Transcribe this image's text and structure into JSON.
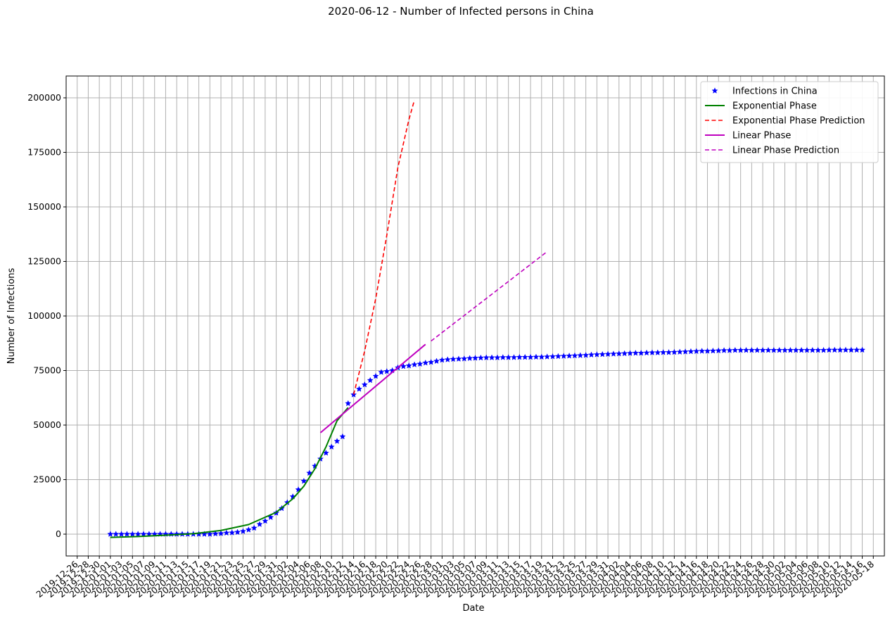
{
  "chart_data": {
    "type": "line",
    "title": "2020-06-12 - Number of Infected persons in China",
    "xlabel": "Date",
    "ylabel": "Number of Infections",
    "ylim": [
      -10000,
      210000
    ],
    "xlim": [
      "2019-12-24",
      "2020-05-20"
    ],
    "yticks": [
      0,
      25000,
      50000,
      75000,
      100000,
      125000,
      150000,
      175000,
      200000
    ],
    "xticks": [
      "2019-12-26",
      "2019-12-28",
      "2019-12-30",
      "2020-01-01",
      "2020-01-03",
      "2020-01-05",
      "2020-01-07",
      "2020-01-09",
      "2020-01-11",
      "2020-01-13",
      "2020-01-15",
      "2020-01-17",
      "2020-01-19",
      "2020-01-21",
      "2020-01-23",
      "2020-01-25",
      "2020-01-27",
      "2020-01-29",
      "2020-01-31",
      "2020-02-02",
      "2020-02-04",
      "2020-02-06",
      "2020-02-08",
      "2020-02-10",
      "2020-02-12",
      "2020-02-14",
      "2020-02-16",
      "2020-02-18",
      "2020-02-20",
      "2020-02-22",
      "2020-02-24",
      "2020-02-26",
      "2020-02-28",
      "2020-03-01",
      "2020-03-03",
      "2020-03-05",
      "2020-03-07",
      "2020-03-09",
      "2020-03-11",
      "2020-03-13",
      "2020-03-15",
      "2020-03-17",
      "2020-03-19",
      "2020-03-21",
      "2020-03-23",
      "2020-03-25",
      "2020-03-27",
      "2020-03-29",
      "2020-03-31",
      "2020-04-02",
      "2020-04-04",
      "2020-04-06",
      "2020-04-08",
      "2020-04-10",
      "2020-04-12",
      "2020-04-14",
      "2020-04-16",
      "2020-04-18",
      "2020-04-20",
      "2020-04-22",
      "2020-04-24",
      "2020-04-26",
      "2020-04-28",
      "2020-04-30",
      "2020-05-02",
      "2020-05-04",
      "2020-05-06",
      "2020-05-08",
      "2020-05-10",
      "2020-05-12",
      "2020-05-14",
      "2020-05-16",
      "2020-05-18"
    ],
    "xtick_labels": [
      "2019-12-26",
      "2019-12-28",
      "2019-12-30",
      "2020-01-01",
      "2020-01-03",
      "2020-01-05",
      "2020-01-07",
      "2020-01-09",
      "2020-01-11",
      "2020-01-13",
      "2020-01-15",
      "2020-01-17",
      "2020-01-19",
      "2020-01-21",
      "2020-01-23",
      "2020-01-25",
      "2020-01-27",
      "2020-01-29",
      "2020-01-31",
      "2020-02-02",
      "2020-02-04",
      "2020-02-06",
      "2020-02-08",
      "2020-02-10",
      "2020-02-12",
      "2020-02-14",
      "2020-02-16",
      "2020-02-18",
      "2020-02-20",
      "2020-02-22",
      "2020-02-24",
      "2020-02-26",
      "2020-02-28",
      "2020-03-01",
      "2020-03-03",
      "2020-03-05",
      "2020-03-07",
      "2020-03-09",
      "2020-03-11",
      "2020-03-13",
      "2020-03-15",
      "2020-03-17",
      "2020-03-19",
      "2020-03-21",
      "2020-03-23",
      "2020-03-25",
      "2020-03-27",
      "2020-03-29",
      "2020-03-31",
      "2020-04-02",
      "2020-04-04",
      "2020-04-06",
      "2020-04-08",
      "2020-04-10",
      "2020-04-12",
      "2020-04-14",
      "2020-04-16",
      "2020-04-18",
      "2020-04-20",
      "2020-04-22",
      "2020-04-24",
      "2020-04-26",
      "2020-04-28",
      "2020-04-30",
      "2020-05-02",
      "2020-05-04",
      "2020-05-06",
      "2020-05-08",
      "2020-05-10",
      "2020-05-12",
      "2020-05-14",
      "2020-05-16",
      "2020-05-18"
    ],
    "grid": true,
    "legend_position": "upper right",
    "series": [
      {
        "name": "Infections in China",
        "style": "star-markers",
        "color": "#0000ff",
        "x": [
          "2020-01-01",
          "2020-01-02",
          "2020-01-03",
          "2020-01-04",
          "2020-01-05",
          "2020-01-06",
          "2020-01-07",
          "2020-01-08",
          "2020-01-09",
          "2020-01-10",
          "2020-01-11",
          "2020-01-12",
          "2020-01-13",
          "2020-01-14",
          "2020-01-15",
          "2020-01-16",
          "2020-01-17",
          "2020-01-18",
          "2020-01-19",
          "2020-01-20",
          "2020-01-21",
          "2020-01-22",
          "2020-01-23",
          "2020-01-24",
          "2020-01-25",
          "2020-01-26",
          "2020-01-27",
          "2020-01-28",
          "2020-01-29",
          "2020-01-30",
          "2020-01-31",
          "2020-02-01",
          "2020-02-02",
          "2020-02-03",
          "2020-02-04",
          "2020-02-05",
          "2020-02-06",
          "2020-02-07",
          "2020-02-08",
          "2020-02-09",
          "2020-02-10",
          "2020-02-11",
          "2020-02-12",
          "2020-02-13",
          "2020-02-14",
          "2020-02-15",
          "2020-02-16",
          "2020-02-17",
          "2020-02-18",
          "2020-02-19",
          "2020-02-20",
          "2020-02-21",
          "2020-02-22",
          "2020-02-23",
          "2020-02-24",
          "2020-02-25",
          "2020-02-26",
          "2020-02-27",
          "2020-02-28",
          "2020-02-29",
          "2020-03-01",
          "2020-03-02",
          "2020-03-03",
          "2020-03-04",
          "2020-03-05",
          "2020-03-06",
          "2020-03-07",
          "2020-03-08",
          "2020-03-09",
          "2020-03-10",
          "2020-03-11",
          "2020-03-12",
          "2020-03-13",
          "2020-03-14",
          "2020-03-15",
          "2020-03-16",
          "2020-03-17",
          "2020-03-18",
          "2020-03-19",
          "2020-03-20",
          "2020-03-21",
          "2020-03-22",
          "2020-03-23",
          "2020-03-24",
          "2020-03-25",
          "2020-03-26",
          "2020-03-27",
          "2020-03-28",
          "2020-03-29",
          "2020-03-30",
          "2020-03-31",
          "2020-04-01",
          "2020-04-02",
          "2020-04-03",
          "2020-04-04",
          "2020-04-05",
          "2020-04-06",
          "2020-04-07",
          "2020-04-08",
          "2020-04-09",
          "2020-04-10",
          "2020-04-11",
          "2020-04-12",
          "2020-04-13",
          "2020-04-14",
          "2020-04-15",
          "2020-04-16",
          "2020-04-17",
          "2020-04-18",
          "2020-04-19",
          "2020-04-20",
          "2020-04-21",
          "2020-04-22",
          "2020-04-23",
          "2020-04-24",
          "2020-04-25",
          "2020-04-26",
          "2020-04-27",
          "2020-04-28",
          "2020-04-29",
          "2020-04-30",
          "2020-05-01",
          "2020-05-02",
          "2020-05-03",
          "2020-05-04",
          "2020-05-05",
          "2020-05-06",
          "2020-05-07",
          "2020-05-08",
          "2020-05-09",
          "2020-05-10",
          "2020-05-11",
          "2020-05-12",
          "2020-05-13",
          "2020-05-14",
          "2020-05-15",
          "2020-05-16"
        ],
        "values": [
          0,
          0,
          0,
          0,
          0,
          0,
          0,
          0,
          0,
          0,
          0,
          0,
          0,
          0,
          0,
          0,
          0,
          0,
          0,
          200,
          300,
          550,
          650,
          900,
          1300,
          2000,
          2800,
          4500,
          6000,
          7700,
          9700,
          11800,
          14500,
          17200,
          20400,
          24300,
          28000,
          31200,
          34500,
          37200,
          40000,
          42600,
          44700,
          59900,
          63900,
          66500,
          68500,
          70500,
          72400,
          74200,
          74600,
          75000,
          76300,
          76900,
          77200,
          77700,
          78000,
          78500,
          78800,
          79300,
          79800,
          80000,
          80200,
          80300,
          80400,
          80600,
          80700,
          80800,
          80900,
          80900,
          80900,
          81000,
          81000,
          81000,
          81100,
          81100,
          81100,
          81200,
          81200,
          81300,
          81400,
          81500,
          81600,
          81700,
          81800,
          81900,
          82000,
          82200,
          82300,
          82400,
          82500,
          82600,
          82700,
          82800,
          82900,
          83000,
          83000,
          83100,
          83200,
          83200,
          83300,
          83300,
          83400,
          83500,
          83600,
          83700,
          83800,
          83900,
          83900,
          84000,
          84100,
          84200,
          84200,
          84300,
          84300,
          84300,
          84300,
          84300,
          84300,
          84300,
          84300,
          84300,
          84300,
          84300,
          84300,
          84300,
          84300,
          84300,
          84300,
          84300,
          84400,
          84400,
          84400,
          84400,
          84400,
          84400,
          84400
        ]
      },
      {
        "name": "Exponential Phase",
        "style": "solid",
        "color": "#008000",
        "x": [
          "2020-01-01",
          "2020-01-06",
          "2020-01-11",
          "2020-01-16",
          "2020-01-21",
          "2020-01-26",
          "2020-01-31",
          "2020-02-03",
          "2020-02-05",
          "2020-02-07",
          "2020-02-09",
          "2020-02-11",
          "2020-02-13"
        ],
        "values": [
          -1500,
          -1100,
          -500,
          200,
          1700,
          4400,
          10000,
          16200,
          22000,
          30000,
          40000,
          52000,
          58000
        ]
      },
      {
        "name": "Exponential Phase Prediction",
        "style": "dashed",
        "color": "#ff0000",
        "x": [
          "2020-02-14",
          "2020-02-16",
          "2020-02-18",
          "2020-02-20",
          "2020-02-22",
          "2020-02-24",
          "2020-02-25"
        ],
        "values": [
          64000,
          84000,
          108000,
          137000,
          168000,
          190000,
          199000
        ]
      },
      {
        "name": "Linear Phase",
        "style": "solid",
        "color": "#bf00bf",
        "x": [
          "2020-02-08",
          "2020-02-27"
        ],
        "values": [
          46500,
          87000
        ]
      },
      {
        "name": "Linear Phase Prediction",
        "style": "dashed",
        "color": "#bf00bf",
        "x": [
          "2020-02-28",
          "2020-03-20"
        ],
        "values": [
          88500,
          129500
        ]
      }
    ]
  }
}
